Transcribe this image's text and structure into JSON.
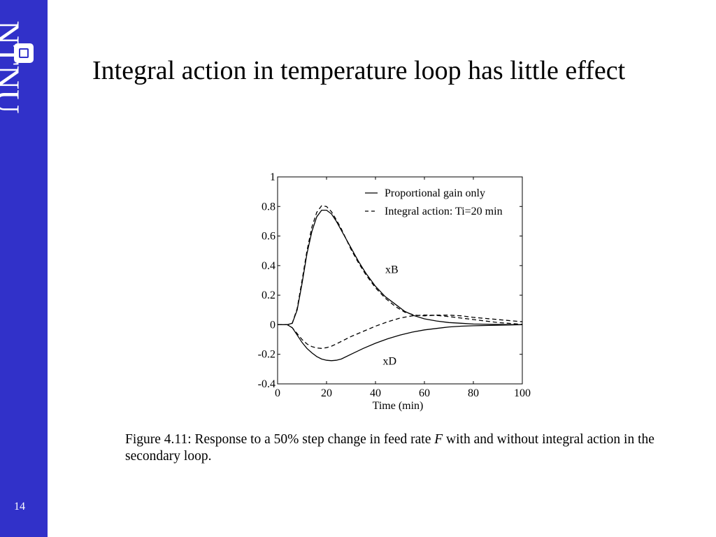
{
  "sidebar": {
    "logo_text": "NTNU",
    "slide_number": "14",
    "background": "#3131c9"
  },
  "slide": {
    "title": "Integral action in temperature loop has little effect"
  },
  "caption": {
    "before": "Figure 4.11: Response to a 50% step change in feed rate ",
    "var": "F",
    "after": " with and without integral action in the secondary loop."
  },
  "chart_data": {
    "type": "line",
    "xlabel": "Time (min)",
    "ylabel": "",
    "xlim": [
      0,
      100
    ],
    "ylim": [
      -0.4,
      1
    ],
    "xticks": [
      0,
      20,
      40,
      60,
      80,
      100
    ],
    "yticks": [
      -0.4,
      -0.2,
      0,
      0.2,
      0.4,
      0.6,
      0.8,
      1
    ],
    "xtick_labels": [
      "0",
      "20",
      "40",
      "60",
      "80",
      "100"
    ],
    "ytick_labels": [
      "-0.4",
      "-0.2",
      "0",
      "0.2",
      "0.4",
      "0.6",
      "0.8",
      "1"
    ],
    "grid": false,
    "legend": {
      "position": "top-right",
      "entries": [
        {
          "label": "Proportional gain only",
          "style": "solid"
        },
        {
          "label": "Integral action: Ti=20 min",
          "style": "dashed"
        }
      ]
    },
    "annotations": [
      {
        "text": "xB",
        "x": 44,
        "y": 0.35
      },
      {
        "text": "xD",
        "x": 43,
        "y": -0.27
      }
    ],
    "series": [
      {
        "style": "solid",
        "x": [
          0,
          4,
          6,
          8,
          10,
          12,
          14,
          16,
          18,
          20,
          22,
          24,
          26,
          28,
          30,
          33,
          36,
          40,
          44,
          48,
          52,
          56,
          60,
          65,
          70,
          75,
          80,
          90,
          100
        ],
        "y": [
          0,
          0,
          0.01,
          0.1,
          0.28,
          0.48,
          0.63,
          0.73,
          0.775,
          0.775,
          0.75,
          0.7,
          0.64,
          0.58,
          0.52,
          0.43,
          0.35,
          0.26,
          0.19,
          0.14,
          0.09,
          0.06,
          0.04,
          0.025,
          0.015,
          0.01,
          0.005,
          0.002,
          0
        ]
      },
      {
        "style": "dashed",
        "x": [
          0,
          4,
          6,
          8,
          10,
          12,
          14,
          16,
          18,
          20,
          22,
          24,
          26,
          28,
          30,
          33,
          36,
          40,
          44,
          48,
          52,
          56,
          60,
          65,
          70,
          75,
          80,
          90,
          100
        ],
        "y": [
          0,
          0,
          0.01,
          0.11,
          0.3,
          0.5,
          0.66,
          0.76,
          0.805,
          0.8,
          0.765,
          0.71,
          0.65,
          0.58,
          0.51,
          0.42,
          0.34,
          0.25,
          0.18,
          0.125,
          0.085,
          0.065,
          0.06,
          0.065,
          0.065,
          0.06,
          0.05,
          0.035,
          0.02
        ]
      },
      {
        "style": "solid",
        "x": [
          0,
          4,
          6,
          8,
          10,
          12,
          14,
          16,
          18,
          20,
          22,
          24,
          26,
          30,
          35,
          40,
          45,
          50,
          55,
          60,
          65,
          70,
          75,
          80,
          90,
          100
        ],
        "y": [
          0,
          0,
          -0.02,
          -0.07,
          -0.12,
          -0.16,
          -0.19,
          -0.215,
          -0.232,
          -0.24,
          -0.243,
          -0.24,
          -0.232,
          -0.2,
          -0.16,
          -0.125,
          -0.095,
          -0.07,
          -0.05,
          -0.035,
          -0.025,
          -0.015,
          -0.01,
          -0.007,
          -0.003,
          0
        ]
      },
      {
        "style": "dashed",
        "x": [
          0,
          4,
          6,
          8,
          10,
          12,
          14,
          16,
          18,
          20,
          22,
          24,
          27,
          30,
          35,
          40,
          45,
          50,
          55,
          60,
          65,
          70,
          75,
          80,
          90,
          100
        ],
        "y": [
          0,
          0,
          -0.02,
          -0.06,
          -0.1,
          -0.13,
          -0.148,
          -0.157,
          -0.16,
          -0.155,
          -0.145,
          -0.13,
          -0.105,
          -0.08,
          -0.045,
          -0.01,
          0.02,
          0.045,
          0.06,
          0.066,
          0.063,
          0.055,
          0.045,
          0.035,
          0.015,
          0.003
        ]
      }
    ]
  }
}
